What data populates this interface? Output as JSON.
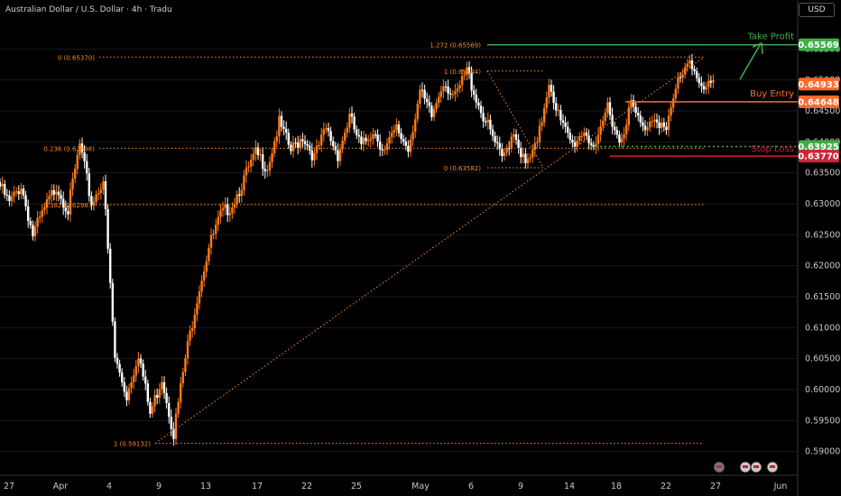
{
  "header": {
    "title": "Australian Dollar / U.S. Dollar · 4h · Tradu",
    "currency": "USD"
  },
  "colors": {
    "up": "#ff7a1a",
    "down": "#ffffff",
    "fib": "#ff8a1f",
    "tp": "#3fae49",
    "entry": "#ff6a2a",
    "sl": "#d0243a",
    "sl_dotted": "#3fae49",
    "grid": "#1a1a1a"
  },
  "chart_data": {
    "type": "candlestick",
    "ylim": [
      0.585,
      0.66
    ],
    "x_ticks": [
      "27",
      "Apr",
      "4",
      "9",
      "13",
      "17",
      "22",
      "25",
      "May",
      "6",
      "9",
      "14",
      "18",
      "22",
      "27",
      "Jun"
    ],
    "y_ticks": [
      "0.65500",
      "0.65000",
      "0.64500",
      "0.64000",
      "0.63500",
      "0.63000",
      "0.62500",
      "0.62000",
      "0.61500",
      "0.61000",
      "0.60500",
      "0.60000",
      "0.59500",
      "0.59000"
    ],
    "fib_levels": [
      {
        "label": "0 (0.65370)",
        "value": 0.6537
      },
      {
        "label": "0.236 (0.63898)",
        "value": 0.63898
      },
      {
        "label": "0.382 (0.62987)",
        "value": 0.62987
      },
      {
        "label": "1 (0.59132)",
        "value": 0.59132
      },
      {
        "label": "1.272 (0.65569)",
        "value": 0.65569
      },
      {
        "label": "1 (0.65144)",
        "value": 0.65144
      },
      {
        "label": "0 (0.63582)",
        "value": 0.63582
      }
    ],
    "trade_levels": [
      {
        "label": "Take Profit",
        "value": 0.65569,
        "price": "0.65569"
      },
      {
        "label": "Buy Entry",
        "value": 0.64648,
        "price": "0.64648"
      },
      {
        "label": "Stop Loss",
        "value": 0.6377,
        "price": "0.63770"
      }
    ],
    "price_tags": [
      {
        "price": "0.65569",
        "value": 0.65569,
        "color": "#3fae49"
      },
      {
        "price": "0.64933",
        "value": 0.64933,
        "color": "#ff6a2a"
      },
      {
        "price": "0.64648",
        "value": 0.64648,
        "color": "#ff6a2a"
      },
      {
        "price": "0.63925",
        "value": 0.63925,
        "color": "#3fae49"
      },
      {
        "price": "0.63770",
        "value": 0.6377,
        "color": "#d0243a"
      }
    ],
    "path": [
      0.6335,
      0.63,
      0.633,
      0.625,
      0.629,
      0.633,
      0.629,
      0.6395,
      0.63,
      0.634,
      0.605,
      0.599,
      0.606,
      0.596,
      0.602,
      0.593,
      0.605,
      0.615,
      0.623,
      0.628,
      0.63,
      0.634,
      0.638,
      0.636,
      0.643,
      0.6385,
      0.641,
      0.6375,
      0.642,
      0.638,
      0.644,
      0.639,
      0.642,
      0.6385,
      0.642,
      0.639,
      0.648,
      0.644,
      0.65,
      0.647,
      0.6515,
      0.646,
      0.6415,
      0.637,
      0.642,
      0.636,
      0.6395,
      0.65,
      0.643,
      0.6395,
      0.642,
      0.6385,
      0.646,
      0.64,
      0.646,
      0.642,
      0.6445,
      0.6415,
      0.65,
      0.6537,
      0.648,
      0.6493
    ]
  }
}
